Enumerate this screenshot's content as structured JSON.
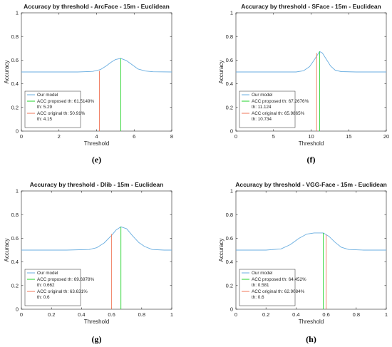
{
  "colors": {
    "model": "#6aaee0",
    "proposed": "#22d32a",
    "original": "#f0775a",
    "axis": "#262626"
  },
  "chart_data": [
    {
      "type": "line",
      "caption": "(e)",
      "title": "Accuracy by threshold - ArcFace - 15m - Euclidean",
      "xlabel": "Threshold",
      "ylabel": "Accuracy",
      "xlim": [
        0,
        8
      ],
      "ylim": [
        0,
        1
      ],
      "xticks": [
        "0",
        "2",
        "4",
        "6",
        "8"
      ],
      "yticks": [
        "0",
        "0.2",
        "0.4",
        "0.6",
        "0.8",
        "1"
      ],
      "grid": false,
      "legend_position": "bottom-left",
      "series": [
        {
          "name": "Our model",
          "kind": "curve",
          "x": [
            0,
            1,
            2,
            3,
            3.8,
            4.2,
            4.5,
            4.8,
            5.0,
            5.29,
            5.6,
            5.9,
            6.2,
            6.6,
            7.0,
            8
          ],
          "y": [
            0.5,
            0.5,
            0.5,
            0.5,
            0.505,
            0.52,
            0.55,
            0.585,
            0.605,
            0.615,
            0.595,
            0.56,
            0.525,
            0.508,
            0.502,
            0.5
          ]
        },
        {
          "name": "ACC proposed th: 61.5149%",
          "sub": "th: 5.29",
          "kind": "vline",
          "x": 5.29,
          "y": 0.615
        },
        {
          "name": "ACC original th: 50.91%",
          "sub": "th: 4.15",
          "kind": "vline",
          "x": 4.15,
          "y": 0.509
        }
      ]
    },
    {
      "type": "line",
      "caption": "(f)",
      "title": "Accuracy by threshold - SFace - 15m - Euclidean",
      "xlabel": "Threshold",
      "ylabel": "Accuracy",
      "xlim": [
        0,
        20
      ],
      "ylim": [
        0,
        1
      ],
      "xticks": [
        "0",
        "5",
        "10",
        "15",
        "20"
      ],
      "yticks": [
        "0",
        "0.2",
        "0.4",
        "0.6",
        "0.8",
        "1"
      ],
      "grid": false,
      "legend_position": "bottom-left",
      "series": [
        {
          "name": "Our model",
          "kind": "curve",
          "x": [
            0,
            5,
            8,
            9,
            9.8,
            10.4,
            10.9,
            11.124,
            11.5,
            12.0,
            12.6,
            13.2,
            14,
            16,
            20
          ],
          "y": [
            0.5,
            0.5,
            0.5,
            0.51,
            0.545,
            0.6,
            0.65,
            0.673,
            0.66,
            0.61,
            0.55,
            0.515,
            0.503,
            0.5,
            0.5
          ]
        },
        {
          "name": "ACC proposed th: 67.2676%",
          "sub": "th: 11.124",
          "kind": "vline",
          "x": 11.124,
          "y": 0.673
        },
        {
          "name": "ACC original th: 65.9865%",
          "sub": "th: 10.734",
          "kind": "vline",
          "x": 10.734,
          "y": 0.66
        }
      ]
    },
    {
      "type": "line",
      "caption": "(g)",
      "title": "Accuracy by threshold - Dlib - 15m - Euclidean",
      "xlabel": "Threshold",
      "ylabel": "Accuracy",
      "xlim": [
        0,
        1
      ],
      "ylim": [
        0,
        1
      ],
      "xticks": [
        "0",
        "0.2",
        "0.4",
        "0.6",
        "0.8",
        "1"
      ],
      "yticks": [
        "0",
        "0.2",
        "0.4",
        "0.6",
        "0.8",
        "1"
      ],
      "grid": false,
      "legend_position": "bottom-left",
      "series": [
        {
          "name": "Our model",
          "kind": "curve",
          "x": [
            0,
            0.3,
            0.45,
            0.5,
            0.55,
            0.6,
            0.63,
            0.662,
            0.7,
            0.74,
            0.78,
            0.82,
            0.87,
            0.95,
            1
          ],
          "y": [
            0.5,
            0.5,
            0.505,
            0.52,
            0.56,
            0.625,
            0.67,
            0.697,
            0.68,
            0.62,
            0.565,
            0.53,
            0.505,
            0.5,
            0.5
          ]
        },
        {
          "name": "ACC proposed th: 69.6978%",
          "sub": "th: 0.662",
          "kind": "vline",
          "x": 0.662,
          "y": 0.697
        },
        {
          "name": "ACC original th: 63.631%",
          "sub": "th: 0.6",
          "kind": "vline",
          "x": 0.6,
          "y": 0.636
        }
      ]
    },
    {
      "type": "line",
      "caption": "(h)",
      "title": "Accuracy by threshold - VGG-Face - 15m - Euclidean",
      "xlabel": "Threshold",
      "ylabel": "Accuracy",
      "xlim": [
        0,
        1
      ],
      "ylim": [
        0,
        1
      ],
      "xticks": [
        "0",
        "0.2",
        "0.4",
        "0.6",
        "0.8",
        "1"
      ],
      "yticks": [
        "0",
        "0.2",
        "0.4",
        "0.6",
        "0.8",
        "1"
      ],
      "grid": false,
      "legend_position": "bottom-left",
      "series": [
        {
          "name": "Our model",
          "kind": "curve",
          "x": [
            0,
            0.2,
            0.3,
            0.36,
            0.42,
            0.47,
            0.52,
            0.56,
            0.581,
            0.62,
            0.66,
            0.7,
            0.75,
            0.85,
            1
          ],
          "y": [
            0.5,
            0.5,
            0.51,
            0.545,
            0.6,
            0.635,
            0.645,
            0.645,
            0.645,
            0.615,
            0.565,
            0.525,
            0.505,
            0.5,
            0.5
          ]
        },
        {
          "name": "ACC proposed th: 64.452%",
          "sub": "th: 0.581",
          "kind": "vline",
          "x": 0.581,
          "y": 0.645
        },
        {
          "name": "ACC original th: 62.9084%",
          "sub": "th: 0.6",
          "kind": "vline",
          "x": 0.6,
          "y": 0.629
        }
      ]
    }
  ]
}
